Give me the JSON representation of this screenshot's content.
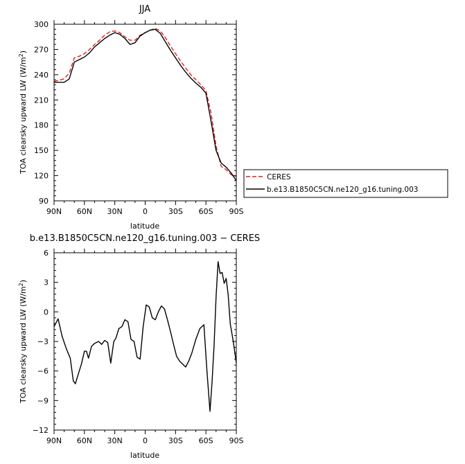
{
  "chart_data": [
    {
      "type": "line",
      "title": "JJA",
      "xlabel": "latitude",
      "ylabel": "TOA clearsky upward LW (W/m",
      "ylabel_sup": "2",
      "ylabel_end": ")",
      "x_tick_values": [
        90,
        60,
        30,
        0,
        -30,
        -60,
        -90
      ],
      "x_tick_labels": [
        "90N",
        "60N",
        "30N",
        "0",
        "30S",
        "60S",
        "90S"
      ],
      "xlim": [
        90,
        -90
      ],
      "ylim": [
        90,
        300
      ],
      "y_ticks": [
        90,
        120,
        150,
        180,
        210,
        240,
        270,
        300
      ],
      "x": [
        90,
        80,
        75,
        70,
        65,
        60,
        55,
        50,
        45,
        40,
        35,
        30,
        25,
        20,
        15,
        10,
        5,
        0,
        -5,
        -10,
        -15,
        -20,
        -25,
        -30,
        -35,
        -40,
        -45,
        -50,
        -55,
        -60,
        -65,
        -70,
        -75,
        -80,
        -85,
        -90
      ],
      "series": [
        {
          "name": "CERES",
          "color": "#e41a1c",
          "dash": "dashed",
          "values": [
            232,
            235,
            242,
            260,
            262,
            265,
            270,
            276,
            281,
            287,
            291,
            292,
            290,
            285,
            281,
            281,
            287,
            290,
            293,
            295,
            292,
            284,
            274,
            265,
            256,
            248,
            240,
            234,
            228,
            221,
            195,
            155,
            131,
            127,
            121,
            119
          ]
        },
        {
          "name": "b.e13.B1850C5CN.ne120_g16.tuning.003",
          "color": "#000000",
          "dash": "solid",
          "values": [
            231,
            231,
            235,
            255,
            258,
            261,
            266,
            273,
            278,
            283,
            287,
            290,
            288,
            283,
            276,
            278,
            286,
            290,
            293,
            294,
            289,
            279,
            269,
            260,
            251,
            243,
            236,
            230,
            225,
            218,
            185,
            150,
            135,
            130,
            123,
            114
          ]
        }
      ]
    },
    {
      "type": "line",
      "title": "b.e13.B1850C5CN.ne120_g16.tuning.003 − CERES",
      "xlabel": "latitude",
      "ylabel": "TOA clearsky upward LW (W/m",
      "ylabel_sup": "2",
      "ylabel_end": ")",
      "x_tick_values": [
        90,
        60,
        30,
        0,
        -30,
        -60,
        -90
      ],
      "x_tick_labels": [
        "90N",
        "60N",
        "30N",
        "0",
        "30S",
        "60S",
        "90S"
      ],
      "xlim": [
        90,
        -90
      ],
      "ylim": [
        -12,
        6
      ],
      "y_ticks": [
        -12,
        -9,
        -6,
        -3,
        0,
        3,
        6
      ],
      "x": [
        90,
        86,
        82,
        78,
        74,
        71,
        69,
        66,
        63,
        60,
        58,
        56,
        53,
        50,
        46,
        43,
        40,
        37,
        34,
        31,
        29,
        26,
        23,
        20,
        17,
        14,
        11,
        8,
        5,
        2,
        -1,
        -4,
        -7,
        -10,
        -13,
        -16,
        -19,
        -22,
        -25,
        -28,
        -31,
        -34,
        -37,
        -40,
        -43,
        -46,
        -50,
        -54,
        -58,
        -61,
        -64,
        -66,
        -68,
        -70,
        -72,
        -74,
        -76,
        -78,
        -80,
        -82,
        -84,
        -87,
        -90
      ],
      "series": [
        {
          "name": "b.e13.B1850C5CN.ne120_g16.tuning.003",
          "color": "#000000",
          "values": [
            -1.5,
            -0.7,
            -2.5,
            -3.7,
            -4.7,
            -7.0,
            -7.3,
            -6.3,
            -5.3,
            -4.0,
            -4.0,
            -4.7,
            -3.5,
            -3.2,
            -3.0,
            -3.3,
            -2.9,
            -3.1,
            -5.2,
            -3.0,
            -2.7,
            -1.7,
            -1.5,
            -0.8,
            -1.0,
            -2.8,
            -3.0,
            -4.6,
            -4.8,
            -1.5,
            0.7,
            0.5,
            -0.6,
            -0.8,
            0.0,
            0.6,
            0.3,
            -0.8,
            -2.0,
            -3.3,
            -4.5,
            -5.0,
            -5.3,
            -5.6,
            -5.0,
            -4.2,
            -2.8,
            -1.7,
            -1.3,
            -6.0,
            -10.1,
            -7.2,
            -3.5,
            1.5,
            5.1,
            3.9,
            4.0,
            2.9,
            3.4,
            1.7,
            -1.2,
            -3.0,
            -5.2
          ]
        }
      ]
    }
  ]
}
